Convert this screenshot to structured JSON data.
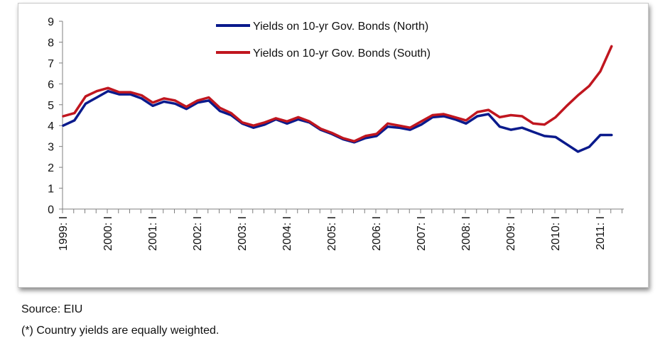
{
  "chart_data": {
    "type": "line",
    "title": "",
    "xlabel": "",
    "ylabel": "",
    "ylim": [
      0,
      9
    ],
    "yticks": [
      0,
      1,
      2,
      3,
      4,
      5,
      6,
      7,
      8,
      9
    ],
    "grid": false,
    "legend_position": "top-center",
    "x_tick_labels": [
      "1999: I",
      "2000: I",
      "2001: I",
      "2002: I",
      "2003: I",
      "2004: I",
      "2005: I",
      "2006: I",
      "2007: I",
      "2008: I",
      "2009: I",
      "2010: I",
      "2011: I"
    ],
    "x": [
      "1999Q1",
      "1999Q2",
      "1999Q3",
      "1999Q4",
      "2000Q1",
      "2000Q2",
      "2000Q3",
      "2000Q4",
      "2001Q1",
      "2001Q2",
      "2001Q3",
      "2001Q4",
      "2002Q1",
      "2002Q2",
      "2002Q3",
      "2002Q4",
      "2003Q1",
      "2003Q2",
      "2003Q3",
      "2003Q4",
      "2004Q1",
      "2004Q2",
      "2004Q3",
      "2004Q4",
      "2005Q1",
      "2005Q2",
      "2005Q3",
      "2005Q4",
      "2006Q1",
      "2006Q2",
      "2006Q3",
      "2006Q4",
      "2007Q1",
      "2007Q2",
      "2007Q3",
      "2007Q4",
      "2008Q1",
      "2008Q2",
      "2008Q3",
      "2008Q4",
      "2009Q1",
      "2009Q2",
      "2009Q3",
      "2009Q4",
      "2010Q1",
      "2010Q2",
      "2010Q3",
      "2010Q4",
      "2011Q1",
      "2011Q2"
    ],
    "series": [
      {
        "name": "Yields on 10-yr Gov. Bonds (North)",
        "color": "#0a1a8c",
        "values": [
          4.0,
          4.25,
          5.05,
          5.35,
          5.65,
          5.5,
          5.5,
          5.3,
          4.95,
          5.15,
          5.05,
          4.8,
          5.1,
          5.2,
          4.7,
          4.5,
          4.1,
          3.9,
          4.05,
          4.3,
          4.1,
          4.3,
          4.15,
          3.8,
          3.6,
          3.35,
          3.2,
          3.4,
          3.5,
          3.95,
          3.9,
          3.8,
          4.05,
          4.4,
          4.45,
          4.3,
          4.1,
          4.45,
          4.55,
          3.95,
          3.8,
          3.9,
          3.7,
          3.5,
          3.45,
          3.1,
          2.75,
          2.98,
          3.55,
          3.55
        ]
      },
      {
        "name": "Yields on 10-yr Gov. Bonds (South)",
        "color": "#c0161f",
        "values": [
          4.45,
          4.6,
          5.4,
          5.65,
          5.8,
          5.6,
          5.6,
          5.45,
          5.1,
          5.3,
          5.2,
          4.9,
          5.2,
          5.35,
          4.85,
          4.6,
          4.15,
          4.0,
          4.15,
          4.35,
          4.2,
          4.4,
          4.2,
          3.85,
          3.65,
          3.4,
          3.25,
          3.5,
          3.6,
          4.1,
          4.0,
          3.9,
          4.2,
          4.5,
          4.55,
          4.4,
          4.25,
          4.65,
          4.75,
          4.4,
          4.5,
          4.45,
          4.1,
          4.05,
          4.4,
          4.95,
          5.45,
          5.9,
          6.6,
          7.8
        ]
      }
    ]
  },
  "footnotes": {
    "source": "Source: EIU",
    "weighting": "(*) Country yields are equally weighted."
  }
}
